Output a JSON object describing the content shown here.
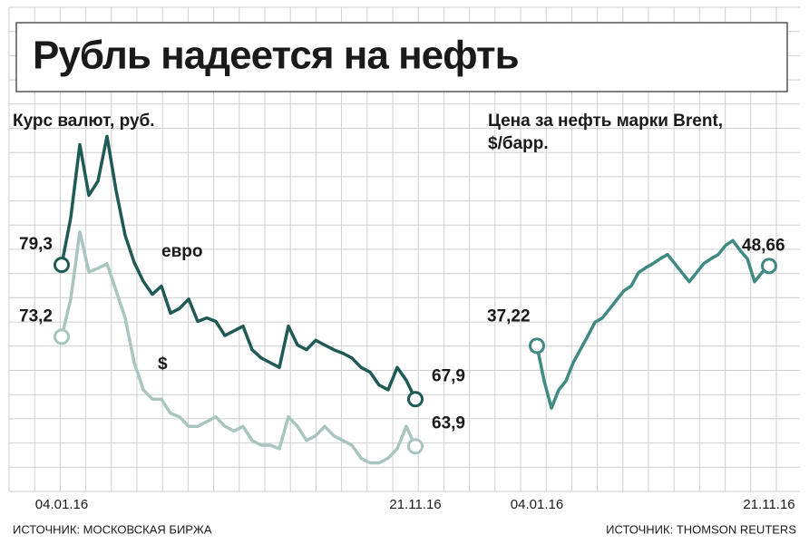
{
  "title": "Рубль надеется на нефть",
  "chart_data": [
    {
      "type": "line",
      "ylabel": [
        "Курс валют, руб."
      ],
      "source": "ИСТОЧНИК: МОСКОВСКАЯ БИРЖА",
      "categories": [
        "04.01.16",
        null,
        null,
        null,
        null,
        null,
        null,
        null,
        null,
        null,
        null,
        null,
        null,
        null,
        null,
        null,
        null,
        null,
        null,
        null,
        null,
        null,
        null,
        null,
        null,
        null,
        null,
        null,
        null,
        null,
        null,
        null,
        null,
        null,
        null,
        null,
        null,
        null,
        null,
        "21.11.16"
      ],
      "ylim": [
        60,
        100
      ],
      "series": [
        {
          "name": "евро",
          "color": "#1f5a55",
          "values": [
            79.3,
            83.3,
            89.5,
            85.2,
            86.4,
            90.2,
            85.6,
            81.8,
            79.5,
            77.9,
            76.8,
            77.5,
            75.2,
            75.6,
            76.4,
            74.5,
            74.8,
            74.5,
            73.3,
            73.7,
            74.1,
            72.1,
            71.4,
            71.0,
            70.6,
            74.1,
            72.5,
            72.1,
            72.9,
            72.5,
            72.1,
            71.8,
            71.4,
            70.6,
            70.2,
            69.1,
            68.7,
            70.6,
            69.5,
            67.9
          ],
          "value_labels": [
            "79,3",
            null,
            null,
            null,
            null,
            null,
            null,
            null,
            null,
            null,
            null,
            null,
            null,
            null,
            null,
            null,
            null,
            null,
            null,
            null,
            null,
            null,
            null,
            null,
            null,
            null,
            null,
            null,
            null,
            null,
            null,
            null,
            null,
            null,
            null,
            null,
            null,
            null,
            null,
            "67,9"
          ]
        },
        {
          "name": "$",
          "color": "#a8c5c0",
          "values": [
            73.2,
            76.4,
            82.1,
            78.7,
            79.0,
            79.4,
            77.1,
            74.8,
            71.0,
            68.7,
            67.9,
            67.9,
            66.7,
            66.4,
            65.6,
            65.6,
            66.0,
            66.4,
            65.6,
            65.2,
            65.6,
            64.4,
            64.0,
            64.0,
            63.7,
            66.4,
            65.6,
            64.4,
            64.8,
            65.6,
            64.8,
            64.4,
            64.0,
            62.9,
            62.5,
            62.5,
            62.9,
            63.7,
            65.6,
            63.9
          ],
          "value_labels": [
            "73,2",
            null,
            null,
            null,
            null,
            null,
            null,
            null,
            null,
            null,
            null,
            null,
            null,
            null,
            null,
            null,
            null,
            null,
            null,
            null,
            null,
            null,
            null,
            null,
            null,
            null,
            null,
            null,
            null,
            null,
            null,
            null,
            null,
            null,
            null,
            null,
            null,
            null,
            null,
            "63,9"
          ]
        }
      ]
    },
    {
      "type": "line",
      "ylabel": [
        "Цена за нефть марки Brent,",
        "$/барр."
      ],
      "source": "ИСТОЧНИК: THOMSON REUTERS",
      "categories": [
        "04.01.16",
        null,
        null,
        null,
        null,
        null,
        null,
        null,
        null,
        null,
        null,
        null,
        null,
        null,
        null,
        null,
        null,
        null,
        null,
        null,
        null,
        null,
        null,
        null,
        null,
        null,
        null,
        null,
        null,
        null,
        null,
        null,
        "21.11.16"
      ],
      "ylim": [
        20,
        60
      ],
      "series": [
        {
          "color": "#3f8a82",
          "values": [
            37.22,
            32.2,
            28.3,
            30.9,
            32.2,
            34.8,
            36.7,
            38.6,
            40.6,
            41.2,
            42.5,
            43.8,
            45.1,
            45.8,
            47.7,
            48.4,
            49.0,
            49.7,
            50.3,
            49.0,
            47.7,
            46.4,
            47.7,
            49.0,
            49.7,
            50.3,
            51.6,
            52.3,
            50.9,
            49.7,
            46.4,
            47.7,
            48.66
          ],
          "value_labels": [
            "37,22",
            null,
            null,
            null,
            null,
            null,
            null,
            null,
            null,
            null,
            null,
            null,
            null,
            null,
            null,
            null,
            null,
            null,
            null,
            null,
            null,
            null,
            null,
            null,
            null,
            null,
            null,
            null,
            null,
            null,
            null,
            null,
            "48,66"
          ]
        }
      ]
    }
  ]
}
